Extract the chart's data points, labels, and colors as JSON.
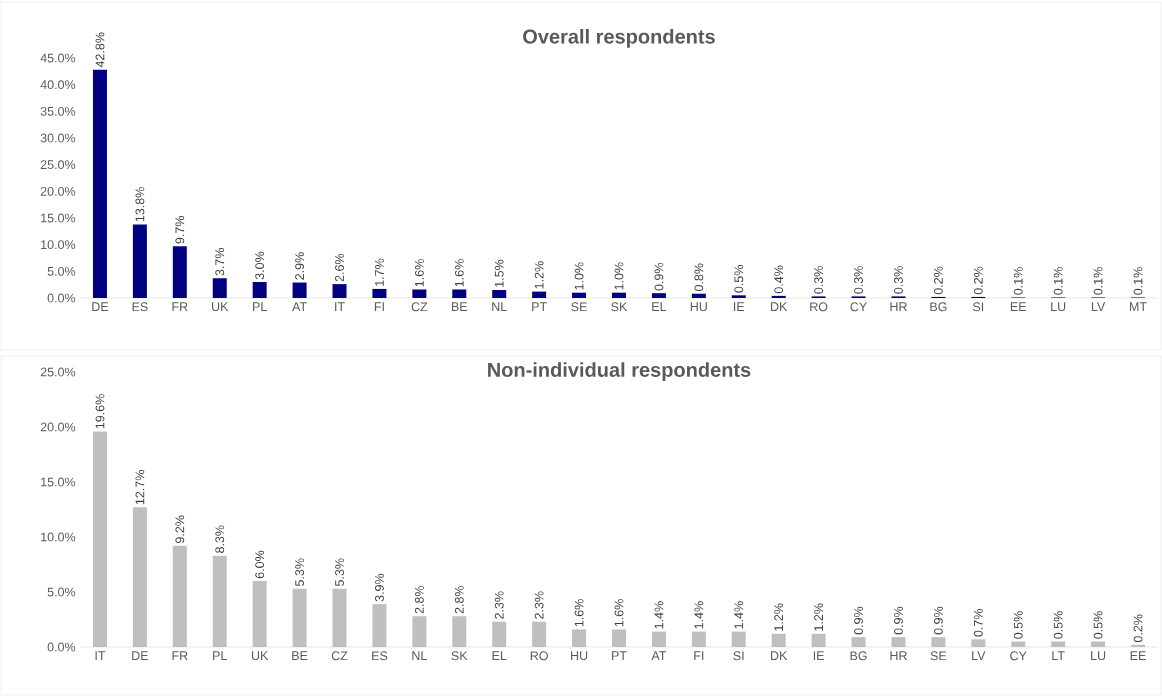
{
  "chart_data": [
    {
      "type": "bar",
      "title": "Overall respondents",
      "color": "#000080",
      "categories": [
        "DE",
        "ES",
        "FR",
        "UK",
        "PL",
        "AT",
        "IT",
        "FI",
        "CZ",
        "BE",
        "NL",
        "PT",
        "SE",
        "SK",
        "EL",
        "HU",
        "IE",
        "DK",
        "RO",
        "CY",
        "HR",
        "BG",
        "SI",
        "EE",
        "LU",
        "LV",
        "MT"
      ],
      "values": [
        42.8,
        13.8,
        9.7,
        3.7,
        3.0,
        2.9,
        2.6,
        1.7,
        1.6,
        1.6,
        1.5,
        1.2,
        1.0,
        1.0,
        0.9,
        0.8,
        0.5,
        0.4,
        0.3,
        0.3,
        0.3,
        0.2,
        0.2,
        0.1,
        0.1,
        0.1,
        0.1
      ],
      "value_labels": [
        "42.8%",
        "13.8%",
        "9.7%",
        "3.7%",
        "3.0%",
        "2.9%",
        "2.6%",
        "1.7%",
        "1.6%",
        "1.6%",
        "1.5%",
        "1.2%",
        "1.0%",
        "1.0%",
        "0.9%",
        "0.8%",
        "0.5%",
        "0.4%",
        "0.3%",
        "0.3%",
        "0.3%",
        "0.2%",
        "0.2%",
        "0.1%",
        "0.1%",
        "0.1%",
        "0.1%"
      ],
      "ylim": [
        0,
        45
      ],
      "yticks": [
        {
          "value": 0,
          "label": "0.0%"
        },
        {
          "value": 5,
          "label": "5.0%"
        },
        {
          "value": 10,
          "label": "10.0%"
        },
        {
          "value": 15,
          "label": "15.0%"
        },
        {
          "value": 20,
          "label": "20.0%"
        },
        {
          "value": 25,
          "label": "25.0%"
        },
        {
          "value": 30,
          "label": "30.0%"
        },
        {
          "value": 35,
          "label": "35.0%"
        },
        {
          "value": 40,
          "label": "40.0%"
        },
        {
          "value": 45,
          "label": "45.0%"
        }
      ]
    },
    {
      "type": "bar",
      "title": "Non-individual respondents",
      "color": "#bfbfbf",
      "categories": [
        "IT",
        "DE",
        "FR",
        "PL",
        "UK",
        "BE",
        "CZ",
        "ES",
        "NL",
        "SK",
        "EL",
        "RO",
        "HU",
        "PT",
        "AT",
        "FI",
        "SI",
        "DK",
        "IE",
        "BG",
        "HR",
        "SE",
        "LV",
        "CY",
        "LT",
        "LU",
        "EE"
      ],
      "values": [
        19.6,
        12.7,
        9.2,
        8.3,
        6.0,
        5.3,
        5.3,
        3.9,
        2.8,
        2.8,
        2.3,
        2.3,
        1.6,
        1.6,
        1.4,
        1.4,
        1.4,
        1.2,
        1.2,
        0.9,
        0.9,
        0.9,
        0.7,
        0.5,
        0.5,
        0.5,
        0.2
      ],
      "value_labels": [
        "19.6%",
        "12.7%",
        "9.2%",
        "8.3%",
        "6.0%",
        "5.3%",
        "5.3%",
        "3.9%",
        "2.8%",
        "2.8%",
        "2.3%",
        "2.3%",
        "1.6%",
        "1.6%",
        "1.4%",
        "1.4%",
        "1.4%",
        "1.2%",
        "1.2%",
        "0.9%",
        "0.9%",
        "0.9%",
        "0.7%",
        "0.5%",
        "0.5%",
        "0.5%",
        "0.2%"
      ],
      "ylim": [
        0,
        25
      ],
      "yticks": [
        {
          "value": 0,
          "label": "0.0%"
        },
        {
          "value": 5,
          "label": "5.0%"
        },
        {
          "value": 10,
          "label": "10.0%"
        },
        {
          "value": 15,
          "label": "15.0%"
        },
        {
          "value": 20,
          "label": "20.0%"
        },
        {
          "value": 25,
          "label": "25.0%"
        }
      ]
    }
  ]
}
